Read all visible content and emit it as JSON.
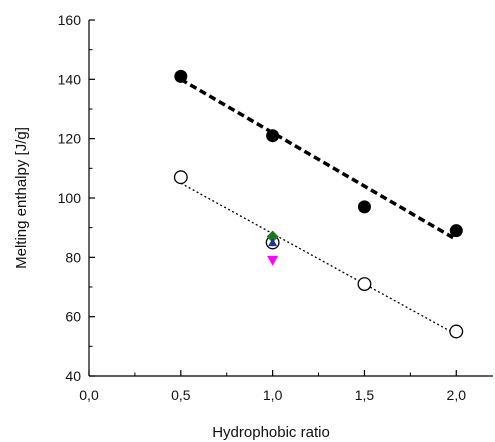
{
  "chart_data": {
    "type": "scatter",
    "xlabel": "Hydrophobic ratio",
    "ylabel": "Melting enthalpy [J/g]",
    "xlim": [
      0.0,
      2.2
    ],
    "ylim": [
      40,
      160
    ],
    "xticks": [
      0.0,
      0.5,
      1.0,
      1.5,
      2.0
    ],
    "xtick_labels": [
      "0,0",
      "0,5",
      "1,0",
      "1,5",
      "2,0"
    ],
    "yticks": [
      40,
      60,
      80,
      100,
      120,
      140,
      160
    ],
    "ytick_labels": [
      "40",
      "60",
      "80",
      "100",
      "120",
      "140",
      "160"
    ],
    "grid": false,
    "legend": "none",
    "series": [
      {
        "marker": "filled-circle",
        "color": "#000000",
        "x": [
          0.5,
          1.0,
          1.5,
          2.0
        ],
        "y": [
          141,
          121,
          97,
          89
        ]
      },
      {
        "marker": "open-circle",
        "color": "#000000",
        "x": [
          0.5,
          1.0,
          1.5,
          2.0
        ],
        "y": [
          107,
          85,
          71,
          55
        ]
      },
      {
        "marker": "diamond",
        "color": "#1a7a1a",
        "x": [
          1.0
        ],
        "y": [
          87
        ]
      },
      {
        "marker": "triangle-up",
        "color": "#1f2fa8",
        "x": [
          1.0
        ],
        "y": [
          85
        ]
      },
      {
        "marker": "triangle-down",
        "color": "#ff00ff",
        "x": [
          1.0
        ],
        "y": [
          79
        ]
      }
    ],
    "fit_lines": [
      {
        "style": "thick-dashed",
        "color": "#000000",
        "x": [
          0.5,
          2.0
        ],
        "y": [
          140,
          86
        ]
      },
      {
        "style": "dotted",
        "color": "#000000",
        "x": [
          0.5,
          2.0
        ],
        "y": [
          105,
          54
        ]
      }
    ]
  }
}
